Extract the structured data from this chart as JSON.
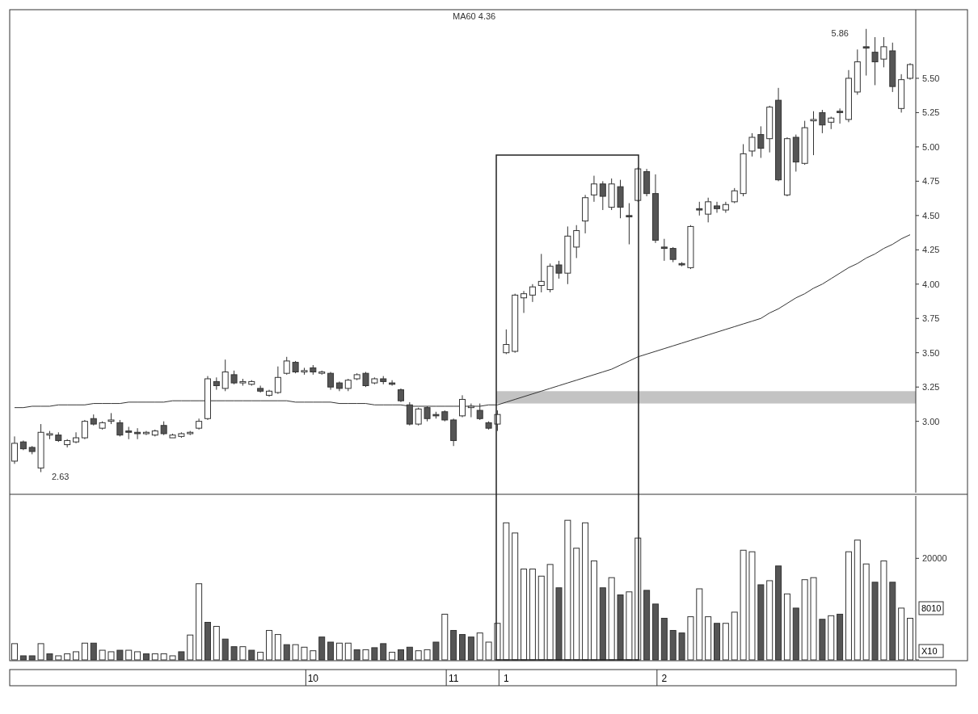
{
  "chart_data": [
    {
      "type": "candlestick",
      "categories": [
        null,
        null,
        null,
        null,
        null,
        null,
        null,
        null,
        null,
        null,
        null,
        null,
        null,
        null,
        null,
        null,
        null,
        null,
        null,
        null,
        null,
        null,
        null,
        null,
        null,
        null,
        null,
        null,
        null,
        null,
        null,
        null,
        null,
        null,
        null,
        null,
        null,
        null,
        null,
        null,
        null,
        null,
        null,
        null,
        null,
        null,
        null,
        null,
        null,
        null,
        null,
        null,
        null,
        null,
        null,
        null,
        null,
        null,
        null,
        null,
        null,
        null,
        null,
        null,
        null,
        null,
        null,
        null,
        null,
        null,
        null,
        null,
        null,
        null,
        null,
        null,
        null,
        null,
        null,
        null,
        null,
        null,
        null,
        null,
        null,
        null,
        null,
        null,
        null,
        null,
        null,
        null,
        null,
        null,
        null,
        null,
        null,
        null,
        null,
        null,
        null,
        null,
        null
      ],
      "ohlc": [
        [
          2.71,
          2.89,
          2.69,
          2.84
        ],
        [
          2.85,
          2.86,
          2.79,
          2.8
        ],
        [
          2.81,
          2.82,
          2.76,
          2.78
        ],
        [
          2.66,
          2.98,
          2.63,
          2.92
        ],
        [
          2.9,
          2.93,
          2.87,
          2.91
        ],
        [
          2.9,
          2.92,
          2.85,
          2.86
        ],
        [
          2.83,
          2.87,
          2.81,
          2.86
        ],
        [
          2.85,
          2.92,
          2.84,
          2.88
        ],
        [
          2.88,
          3.01,
          2.87,
          3.0
        ],
        [
          3.02,
          3.05,
          2.97,
          2.98
        ],
        [
          2.95,
          3.0,
          2.94,
          2.99
        ],
        [
          3.0,
          3.06,
          2.98,
          3.01
        ],
        [
          2.99,
          3.01,
          2.89,
          2.9
        ],
        [
          2.93,
          2.96,
          2.87,
          2.92
        ],
        [
          2.92,
          2.95,
          2.87,
          2.91
        ],
        [
          2.91,
          2.93,
          2.9,
          2.92
        ],
        [
          2.9,
          2.94,
          2.89,
          2.93
        ],
        [
          2.97,
          3.0,
          2.9,
          2.91
        ],
        [
          2.88,
          2.91,
          2.88,
          2.9
        ],
        [
          2.89,
          2.92,
          2.88,
          2.91
        ],
        [
          2.91,
          2.93,
          2.9,
          2.92
        ],
        [
          2.95,
          3.02,
          2.94,
          3.0
        ],
        [
          3.02,
          3.33,
          3.01,
          3.31
        ],
        [
          3.29,
          3.32,
          3.23,
          3.26
        ],
        [
          3.24,
          3.45,
          3.22,
          3.36
        ],
        [
          3.34,
          3.37,
          3.27,
          3.28
        ],
        [
          3.28,
          3.31,
          3.26,
          3.29
        ],
        [
          3.27,
          3.3,
          3.26,
          3.29
        ],
        [
          3.24,
          3.26,
          3.21,
          3.22
        ],
        [
          3.19,
          3.23,
          3.18,
          3.22
        ],
        [
          3.21,
          3.4,
          3.2,
          3.32
        ],
        [
          3.35,
          3.47,
          3.34,
          3.44
        ],
        [
          3.43,
          3.44,
          3.35,
          3.36
        ],
        [
          3.36,
          3.39,
          3.34,
          3.37
        ],
        [
          3.39,
          3.41,
          3.34,
          3.36
        ],
        [
          3.35,
          3.37,
          3.34,
          3.36
        ],
        [
          3.35,
          3.36,
          3.23,
          3.25
        ],
        [
          3.28,
          3.29,
          3.22,
          3.24
        ],
        [
          3.24,
          3.31,
          3.22,
          3.3
        ],
        [
          3.31,
          3.35,
          3.3,
          3.34
        ],
        [
          3.35,
          3.36,
          3.25,
          3.26
        ],
        [
          3.28,
          3.32,
          3.27,
          3.31
        ],
        [
          3.31,
          3.33,
          3.27,
          3.29
        ],
        [
          3.28,
          3.3,
          3.26,
          3.27
        ],
        [
          3.23,
          3.24,
          3.14,
          3.15
        ],
        [
          3.12,
          3.14,
          2.97,
          2.98
        ],
        [
          2.98,
          3.1,
          2.97,
          3.09
        ],
        [
          3.1,
          3.11,
          3.0,
          3.02
        ],
        [
          3.05,
          3.07,
          3.02,
          3.04
        ],
        [
          3.07,
          3.08,
          3.0,
          3.01
        ],
        [
          3.01,
          3.02,
          2.82,
          2.86
        ],
        [
          3.04,
          3.19,
          3.03,
          3.16
        ],
        [
          3.1,
          3.13,
          3.03,
          3.11
        ],
        [
          3.08,
          3.13,
          3.01,
          3.02
        ],
        [
          2.99,
          3.0,
          2.94,
          2.95
        ],
        [
          2.98,
          3.08,
          2.93,
          3.05
        ],
        [
          3.5,
          3.67,
          3.49,
          3.56
        ],
        [
          3.51,
          3.93,
          3.5,
          3.92
        ],
        [
          3.9,
          3.95,
          3.79,
          3.93
        ],
        [
          3.92,
          4.0,
          3.87,
          3.98
        ],
        [
          3.99,
          4.22,
          3.94,
          4.02
        ],
        [
          3.96,
          4.15,
          3.94,
          4.13
        ],
        [
          4.14,
          4.17,
          4.04,
          4.08
        ],
        [
          4.08,
          4.42,
          4.0,
          4.35
        ],
        [
          4.27,
          4.43,
          4.19,
          4.39
        ],
        [
          4.46,
          4.65,
          4.37,
          4.63
        ],
        [
          4.65,
          4.79,
          4.6,
          4.73
        ],
        [
          4.73,
          4.75,
          4.54,
          4.64
        ],
        [
          4.56,
          4.77,
          4.54,
          4.73
        ],
        [
          4.71,
          4.76,
          4.48,
          4.56
        ],
        [
          4.5,
          4.59,
          4.29,
          4.49
        ],
        [
          4.61,
          4.85,
          4.6,
          4.84
        ],
        [
          4.82,
          4.84,
          4.64,
          4.66
        ],
        [
          4.66,
          4.8,
          4.3,
          4.32
        ],
        [
          4.27,
          4.33,
          4.17,
          4.26
        ],
        [
          4.26,
          4.27,
          4.16,
          4.18
        ],
        [
          4.15,
          4.16,
          4.13,
          4.14
        ],
        [
          4.12,
          4.43,
          4.11,
          4.42
        ],
        [
          4.55,
          4.6,
          4.5,
          4.54
        ],
        [
          4.51,
          4.63,
          4.45,
          4.6
        ],
        [
          4.57,
          4.6,
          4.52,
          4.55
        ],
        [
          4.54,
          4.6,
          4.52,
          4.58
        ],
        [
          4.6,
          4.7,
          4.59,
          4.68
        ],
        [
          4.66,
          5.02,
          4.64,
          4.95
        ],
        [
          4.97,
          5.1,
          4.93,
          5.07
        ],
        [
          5.09,
          5.15,
          4.92,
          4.99
        ],
        [
          5.06,
          5.3,
          4.96,
          5.29
        ],
        [
          5.34,
          5.43,
          4.75,
          4.76
        ],
        [
          4.65,
          5.07,
          4.64,
          5.06
        ],
        [
          5.07,
          5.09,
          4.82,
          4.89
        ],
        [
          4.88,
          5.19,
          4.87,
          5.14
        ],
        [
          5.19,
          5.26,
          4.94,
          5.2
        ],
        [
          5.25,
          5.27,
          5.1,
          5.16
        ],
        [
          5.18,
          5.22,
          5.13,
          5.21
        ],
        [
          5.26,
          5.28,
          5.17,
          5.25
        ],
        [
          5.2,
          5.56,
          5.18,
          5.5
        ],
        [
          5.4,
          5.71,
          5.38,
          5.62
        ],
        [
          5.73,
          5.86,
          5.52,
          5.72
        ],
        [
          5.69,
          5.8,
          5.45,
          5.62
        ],
        [
          5.64,
          5.8,
          5.58,
          5.73
        ],
        [
          5.7,
          5.76,
          5.4,
          5.44
        ],
        [
          5.28,
          5.53,
          5.25,
          5.49
        ],
        [
          5.5,
          5.61,
          5.49,
          5.6
        ]
      ],
      "series": [
        {
          "type": "line",
          "name": "MA60 4.36",
          "color": "#333333",
          "values": [
            3.1,
            3.1,
            3.11,
            3.11,
            3.11,
            3.12,
            3.12,
            3.12,
            3.12,
            3.13,
            3.13,
            3.13,
            3.13,
            3.14,
            3.14,
            3.14,
            3.14,
            3.14,
            3.15,
            3.15,
            3.15,
            3.15,
            3.15,
            3.15,
            3.15,
            3.15,
            3.15,
            3.15,
            3.15,
            3.15,
            3.15,
            3.15,
            3.14,
            3.14,
            3.14,
            3.14,
            3.14,
            3.13,
            3.13,
            3.13,
            3.13,
            3.12,
            3.12,
            3.12,
            3.12,
            3.11,
            3.11,
            3.11,
            3.11,
            3.11,
            3.11,
            3.11,
            3.11,
            3.11,
            3.12,
            3.12,
            3.14,
            3.16,
            3.18,
            3.2,
            3.22,
            3.24,
            3.26,
            3.28,
            3.3,
            3.32,
            3.34,
            3.36,
            3.38,
            3.41,
            3.44,
            3.47,
            3.49,
            3.51,
            3.53,
            3.55,
            3.57,
            3.59,
            3.61,
            3.63,
            3.65,
            3.67,
            3.69,
            3.71,
            3.73,
            3.75,
            3.79,
            3.82,
            3.86,
            3.9,
            3.93,
            3.97,
            4.0,
            4.04,
            4.08,
            4.12,
            4.15,
            4.19,
            4.22,
            4.26,
            4.29,
            4.33,
            4.36
          ]
        }
      ],
      "ylim": [
        2.48,
        6.0
      ],
      "yticks": [
        {
          "value": 3.0,
          "label": "3.00"
        },
        {
          "value": 3.25,
          "label": "3.25"
        },
        {
          "value": 3.5,
          "label": "3.50"
        },
        {
          "value": 3.75,
          "label": "3.75"
        },
        {
          "value": 4.0,
          "label": "4.00"
        },
        {
          "value": 4.25,
          "label": "4.25"
        },
        {
          "value": 4.5,
          "label": "4.50"
        },
        {
          "value": 4.75,
          "label": "4.75"
        },
        {
          "value": 5.0,
          "label": "5.00"
        },
        {
          "value": 5.25,
          "label": "5.25"
        },
        {
          "value": 5.5,
          "label": "5.50"
        }
      ],
      "bands": [
        {
          "axis": "y",
          "from": 3.13,
          "to": 3.22,
          "color": "#b4b4b4"
        }
      ],
      "annotations": [
        "2.63",
        "5.86"
      ],
      "tick_labels": "y",
      "grid": false
    },
    {
      "type": "bar",
      "categories": [
        null,
        null,
        null,
        null,
        null,
        null,
        null,
        null,
        null,
        null,
        null,
        null,
        null,
        null,
        null,
        null,
        null,
        null,
        null,
        null,
        null,
        null,
        null,
        null,
        null,
        null,
        null,
        null,
        null,
        null,
        null,
        null,
        null,
        null,
        "10",
        null,
        null,
        null,
        null,
        null,
        null,
        null,
        null,
        null,
        null,
        null,
        null,
        null,
        null,
        null,
        "11",
        null,
        null,
        null,
        null,
        null,
        "1",
        null,
        null,
        null,
        null,
        null,
        null,
        null,
        null,
        null,
        null,
        null,
        null,
        null,
        null,
        null,
        null,
        null,
        "2",
        null,
        null,
        null,
        null,
        null,
        null,
        null,
        null,
        null,
        null,
        null,
        null,
        null,
        null,
        null,
        null,
        null,
        null,
        null,
        null,
        null,
        null,
        null,
        null,
        null,
        null,
        null,
        null
      ],
      "values": [
        3200,
        800,
        800,
        3200,
        1200,
        800,
        1200,
        1600,
        3300,
        3300,
        1900,
        1600,
        1900,
        1900,
        1600,
        1200,
        1200,
        1200,
        800,
        1600,
        4900,
        15000,
        7400,
        6600,
        4100,
        2600,
        2600,
        1900,
        1500,
        5800,
        5000,
        3000,
        3000,
        2500,
        1800,
        4500,
        3500,
        3300,
        3300,
        2000,
        2000,
        2400,
        3200,
        1500,
        2000,
        2500,
        1800,
        2000,
        3500,
        9000,
        5800,
        5000,
        4500,
        5300,
        3500,
        7200,
        27000,
        25000,
        17900,
        17900,
        16500,
        18800,
        14200,
        27500,
        22000,
        27000,
        19500,
        14200,
        16200,
        12800,
        13400,
        24000,
        13700,
        11000,
        8200,
        5800,
        5300,
        8500,
        14000,
        8500,
        7200,
        7200,
        9400,
        21600,
        21300,
        14800,
        15600,
        18500,
        13000,
        10200,
        15800,
        16200,
        8000,
        8700,
        9000,
        21300,
        23600,
        18900,
        15300,
        19500,
        15300,
        10200,
        8200
      ],
      "colors": [
        "#ffffff",
        "#555555",
        "#555555",
        "#ffffff",
        "#555555",
        "#ffffff",
        "#ffffff",
        "#ffffff",
        "#ffffff",
        "#555555",
        "#ffffff",
        "#ffffff",
        "#555555",
        "#ffffff",
        "#ffffff",
        "#555555",
        "#ffffff",
        "#ffffff",
        "#ffffff",
        "#555555",
        "#ffffff",
        "#ffffff",
        "#555555",
        "#ffffff",
        "#555555",
        "#555555",
        "#ffffff",
        "#555555",
        "#ffffff",
        "#ffffff",
        "#ffffff",
        "#555555",
        "#ffffff",
        "#ffffff",
        "#ffffff",
        "#555555",
        "#555555",
        "#ffffff",
        "#ffffff",
        "#555555",
        "#ffffff",
        "#555555",
        "#555555",
        "#ffffff",
        "#555555",
        "#555555",
        "#ffffff",
        "#ffffff",
        "#555555",
        "#ffffff",
        "#555555",
        "#555555",
        "#555555",
        "#ffffff",
        "#ffffff",
        "#ffffff",
        "#ffffff",
        "#ffffff",
        "#ffffff",
        "#ffffff",
        "#ffffff",
        "#ffffff",
        "#555555",
        "#ffffff",
        "#ffffff",
        "#ffffff",
        "#ffffff",
        "#555555",
        "#ffffff",
        "#555555",
        "#ffffff",
        "#ffffff",
        "#555555",
        "#555555",
        "#555555",
        "#555555",
        "#555555",
        "#ffffff",
        "#ffffff",
        "#ffffff",
        "#555555",
        "#ffffff",
        "#ffffff",
        "#ffffff",
        "#ffffff",
        "#555555",
        "#ffffff",
        "#555555",
        "#ffffff",
        "#555555",
        "#ffffff",
        "#ffffff",
        "#555555",
        "#ffffff",
        "#555555",
        "#ffffff",
        "#ffffff",
        "#ffffff",
        "#555555",
        "#ffffff",
        "#555555",
        "#ffffff",
        "#ffffff"
      ],
      "ylim": [
        0,
        32300
      ],
      "yticks": [
        {
          "value": 0,
          "label": null
        },
        {
          "value": 20000,
          "label": "20000"
        }
      ],
      "annotations": [
        "8010",
        "X10"
      ],
      "grid": false
    }
  ]
}
